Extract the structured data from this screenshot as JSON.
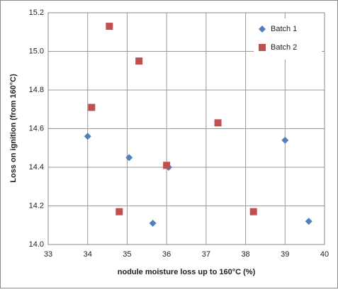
{
  "chart_data": {
    "type": "scatter",
    "x_label": "nodule moisture loss up to 160°C (%)",
    "y_label": "Loss on ignition (from 160°C)",
    "series": [
      {
        "name": "Batch 1",
        "color": "#4f81bd",
        "marker": "diamond",
        "x": [
          34.0,
          35.05,
          36.05,
          35.65,
          39.0,
          39.6
        ],
        "values": [
          14.56,
          14.45,
          14.4,
          14.11,
          14.54,
          14.12
        ]
      },
      {
        "name": "Batch 2",
        "color": "#c0504d",
        "marker": "square",
        "x": [
          34.55,
          35.3,
          34.1,
          36.0,
          37.3,
          34.8,
          38.2
        ],
        "values": [
          15.13,
          14.95,
          14.71,
          14.41,
          14.63,
          14.17,
          14.17
        ]
      }
    ],
    "xlim": [
      33,
      40
    ],
    "xticks": [
      33,
      34,
      35,
      36,
      37,
      38,
      39,
      40
    ],
    "ylim": [
      14.0,
      15.2
    ],
    "yticks": [
      {
        "value": 14.0,
        "label": "14.0"
      },
      {
        "value": 14.2,
        "label": "14.2"
      },
      {
        "value": 14.4,
        "label": "14.4"
      },
      {
        "value": 14.6,
        "label": "14.6"
      },
      {
        "value": 14.8,
        "label": "14.8"
      },
      {
        "value": 15.0,
        "label": "15.0"
      },
      {
        "value": 15.2,
        "label": "15.2"
      }
    ],
    "grid": true,
    "legend": "top-right"
  }
}
